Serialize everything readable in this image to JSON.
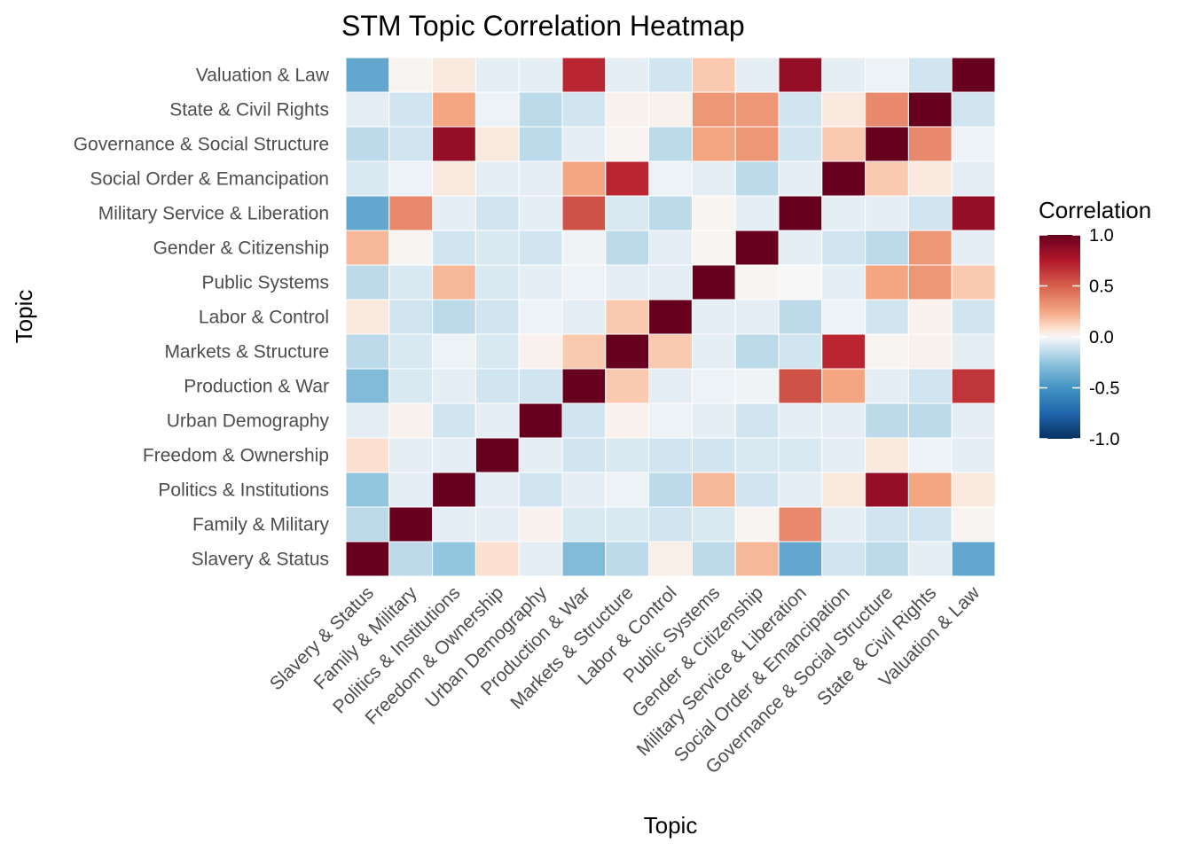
{
  "chart_data": {
    "type": "heatmap",
    "title": "STM Topic Correlation Heatmap",
    "xlabel": "Topic",
    "ylabel": "Topic",
    "legend": {
      "title": "Correlation",
      "placement": "right",
      "ticks": [
        1.0,
        0.5,
        0.0,
        -0.5,
        -1.0
      ],
      "tick_labels": [
        "1.0",
        "0.5",
        "0.0",
        "-0.5",
        "-1.0"
      ],
      "range": [
        -1,
        1
      ]
    },
    "colorscale": [
      {
        "v": -1.0,
        "c": "#053061"
      },
      {
        "v": -0.75,
        "c": "#2166ac"
      },
      {
        "v": -0.5,
        "c": "#4393c3"
      },
      {
        "v": -0.25,
        "c": "#92c5de"
      },
      {
        "v": -0.1,
        "c": "#d1e5f0"
      },
      {
        "v": 0.0,
        "c": "#f7f7f7"
      },
      {
        "v": 0.1,
        "c": "#fddbc7"
      },
      {
        "v": 0.25,
        "c": "#f4a582"
      },
      {
        "v": 0.5,
        "c": "#d6604d"
      },
      {
        "v": 0.75,
        "c": "#b2182b"
      },
      {
        "v": 1.0,
        "c": "#67001f"
      }
    ],
    "topics": [
      "Slavery & Status",
      "Family & Military",
      "Politics & Institutions",
      "Freedom & Ownership",
      "Urban Demography",
      "Production & War",
      "Markets & Structure",
      "Labor & Control",
      "Public Systems",
      "Gender & Citizenship",
      "Military Service & Liberation",
      "Social Order & Emancipation",
      "Governance & Social Structure",
      "State & Civil Rights",
      "Valuation & Law"
    ],
    "matrix": [
      [
        1.0,
        -0.15,
        -0.25,
        0.08,
        -0.05,
        -0.3,
        -0.15,
        0.03,
        -0.15,
        0.2,
        -0.4,
        -0.1,
        -0.15,
        -0.05,
        -0.4
      ],
      [
        -0.15,
        1.0,
        -0.05,
        -0.05,
        0.02,
        -0.08,
        -0.08,
        -0.1,
        -0.08,
        0.01,
        0.35,
        -0.05,
        -0.1,
        -0.1,
        0.01
      ],
      [
        -0.25,
        -0.05,
        1.0,
        -0.05,
        -0.1,
        -0.05,
        -0.03,
        -0.15,
        0.2,
        -0.1,
        -0.05,
        0.05,
        0.85,
        0.25,
        0.05
      ],
      [
        0.08,
        -0.05,
        -0.05,
        1.0,
        -0.05,
        -0.1,
        -0.08,
        -0.1,
        -0.1,
        -0.08,
        -0.08,
        -0.05,
        0.05,
        -0.03,
        -0.05
      ],
      [
        -0.05,
        0.02,
        -0.1,
        -0.05,
        1.0,
        -0.1,
        0.02,
        -0.03,
        -0.05,
        -0.1,
        -0.05,
        -0.05,
        -0.15,
        -0.15,
        -0.05
      ],
      [
        -0.3,
        -0.08,
        -0.05,
        -0.1,
        -0.1,
        1.0,
        0.15,
        -0.05,
        -0.03,
        -0.02,
        0.55,
        0.25,
        -0.05,
        -0.1,
        0.65
      ],
      [
        -0.15,
        -0.08,
        -0.03,
        -0.08,
        0.02,
        0.15,
        1.0,
        0.15,
        -0.05,
        -0.15,
        -0.1,
        0.7,
        0.01,
        0.02,
        -0.05
      ],
      [
        0.05,
        -0.1,
        -0.15,
        -0.1,
        -0.03,
        -0.05,
        0.15,
        1.0,
        -0.05,
        -0.05,
        -0.15,
        -0.03,
        -0.1,
        0.02,
        -0.1
      ],
      [
        -0.15,
        -0.08,
        0.2,
        -0.08,
        -0.05,
        -0.03,
        -0.05,
        -0.05,
        1.0,
        0.01,
        0.0,
        -0.05,
        0.25,
        0.3,
        0.15
      ],
      [
        0.2,
        0.01,
        -0.1,
        -0.08,
        -0.1,
        -0.02,
        -0.15,
        -0.05,
        0.01,
        1.0,
        -0.05,
        -0.1,
        -0.15,
        0.3,
        -0.05
      ],
      [
        -0.4,
        0.35,
        -0.05,
        -0.1,
        -0.05,
        0.55,
        -0.08,
        -0.15,
        0.01,
        -0.05,
        1.0,
        -0.05,
        -0.05,
        -0.1,
        0.85
      ],
      [
        -0.08,
        -0.03,
        0.05,
        -0.05,
        -0.05,
        0.25,
        0.7,
        -0.03,
        -0.05,
        -0.15,
        -0.05,
        1.0,
        0.15,
        0.05,
        -0.05
      ],
      [
        -0.15,
        -0.1,
        0.85,
        0.05,
        -0.15,
        -0.05,
        0.01,
        -0.15,
        0.25,
        0.3,
        -0.1,
        0.15,
        1.0,
        0.35,
        -0.03
      ],
      [
        -0.05,
        -0.1,
        0.25,
        -0.03,
        -0.15,
        -0.1,
        0.02,
        0.02,
        0.3,
        0.3,
        -0.1,
        0.05,
        0.35,
        1.0,
        -0.1
      ],
      [
        -0.4,
        0.01,
        0.05,
        -0.05,
        -0.05,
        0.7,
        -0.05,
        -0.1,
        0.15,
        -0.05,
        0.85,
        -0.05,
        -0.03,
        -0.1,
        1.0
      ]
    ]
  }
}
